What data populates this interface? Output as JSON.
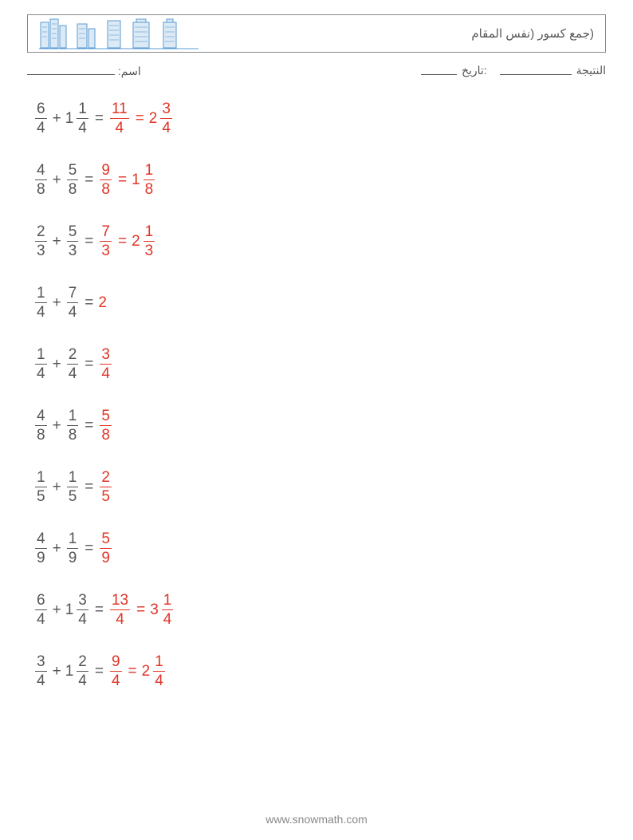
{
  "header": {
    "title": "(جمع كسور (نفس المقام"
  },
  "meta": {
    "name_label": "اسم:",
    "name_blank_width": 110,
    "score_label": "النتيجة",
    "score_blank_width": 90,
    "date_label": ":تاريخ",
    "date_blank_width": 45
  },
  "colors": {
    "text": "#555555",
    "answer": "#e03426",
    "border": "#888888",
    "building_fill": "#6fb4e3",
    "building_stroke": "#3a7db0"
  },
  "problems": [
    {
      "a": {
        "n": 6,
        "d": 4
      },
      "b": {
        "w": 1,
        "n": 1,
        "d": 4
      },
      "answers": [
        {
          "n": 11,
          "d": 4
        },
        {
          "w": 2,
          "n": 3,
          "d": 4
        }
      ]
    },
    {
      "a": {
        "n": 4,
        "d": 8
      },
      "b": {
        "n": 5,
        "d": 8
      },
      "answers": [
        {
          "n": 9,
          "d": 8
        },
        {
          "w": 1,
          "n": 1,
          "d": 8
        }
      ]
    },
    {
      "a": {
        "n": 2,
        "d": 3
      },
      "b": {
        "n": 5,
        "d": 3
      },
      "answers": [
        {
          "n": 7,
          "d": 3
        },
        {
          "w": 2,
          "n": 1,
          "d": 3
        }
      ]
    },
    {
      "a": {
        "n": 1,
        "d": 4
      },
      "b": {
        "n": 7,
        "d": 4
      },
      "answers": [
        {
          "w": 2
        }
      ]
    },
    {
      "a": {
        "n": 1,
        "d": 4
      },
      "b": {
        "n": 2,
        "d": 4
      },
      "answers": [
        {
          "n": 3,
          "d": 4
        }
      ]
    },
    {
      "a": {
        "n": 4,
        "d": 8
      },
      "b": {
        "n": 1,
        "d": 8
      },
      "answers": [
        {
          "n": 5,
          "d": 8
        }
      ]
    },
    {
      "a": {
        "n": 1,
        "d": 5
      },
      "b": {
        "n": 1,
        "d": 5
      },
      "answers": [
        {
          "n": 2,
          "d": 5
        }
      ]
    },
    {
      "a": {
        "n": 4,
        "d": 9
      },
      "b": {
        "n": 1,
        "d": 9
      },
      "answers": [
        {
          "n": 5,
          "d": 9
        }
      ]
    },
    {
      "a": {
        "n": 6,
        "d": 4
      },
      "b": {
        "w": 1,
        "n": 3,
        "d": 4
      },
      "answers": [
        {
          "n": 13,
          "d": 4
        },
        {
          "w": 3,
          "n": 1,
          "d": 4
        }
      ]
    },
    {
      "a": {
        "n": 3,
        "d": 4
      },
      "b": {
        "w": 1,
        "n": 2,
        "d": 4
      },
      "answers": [
        {
          "n": 9,
          "d": 4
        },
        {
          "w": 2,
          "n": 1,
          "d": 4
        }
      ]
    }
  ],
  "footer": {
    "url": "www.snowmath.com"
  }
}
